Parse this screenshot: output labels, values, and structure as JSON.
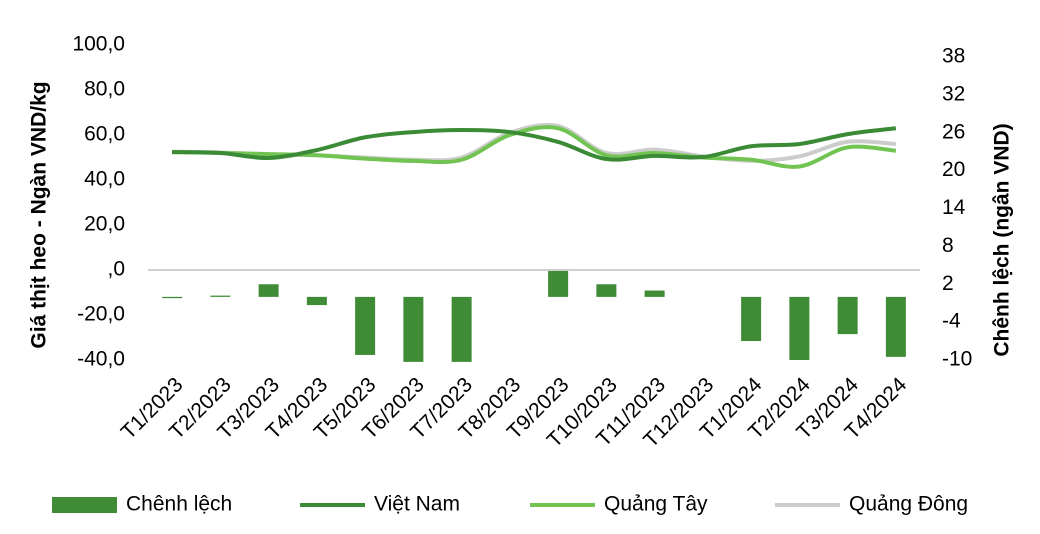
{
  "chart_data": {
    "type": "combo",
    "y_label": "Giá thịt heo - Ngàn VND/kg",
    "y2_label": "Chênh lệch (ngân VND)",
    "categories": [
      "T1/2023",
      "T2/2023",
      "T3/2023",
      "T4/2023",
      "T5/2023",
      "T6/2023",
      "T7/2023",
      "T8/2023",
      "T9/2023",
      "T10/2023",
      "T11/2023",
      "T12/2023",
      "T1/2024",
      "T2/2024",
      "T3/2024",
      "T4/2024"
    ],
    "ylim": [
      -40,
      100
    ],
    "yticks": [
      {
        "value": -40,
        "label": "-40,0"
      },
      {
        "value": -20,
        "label": "-20,0"
      },
      {
        "value": 0,
        "label": ",0"
      },
      {
        "value": 20,
        "label": "20,0"
      },
      {
        "value": 40,
        "label": "40,0"
      },
      {
        "value": 60,
        "label": "60,0"
      },
      {
        "value": 80,
        "label": "80,0"
      },
      {
        "value": 100,
        "label": "100,0"
      }
    ],
    "y2lim": [
      -10,
      38
    ],
    "y2ticks": [
      -10,
      -4,
      2,
      8,
      14,
      20,
      26,
      32,
      38
    ],
    "series": [
      {
        "name": "Chênh lệch",
        "type": "bar",
        "axis": "y2",
        "color": "#3f8b36",
        "values": [
          -0.2,
          0.2,
          2,
          -1.3,
          -9.2,
          -10.3,
          -10.3,
          0,
          4.1,
          2,
          1,
          0,
          -7,
          -10,
          -5.9,
          -9.5
        ]
      },
      {
        "name": "Việt Nam",
        "type": "line",
        "color": "#3b8a35",
        "values": [
          52.4,
          52,
          49.8,
          53.3,
          59,
          61.3,
          62.2,
          61.3,
          56.9,
          49.3,
          50.7,
          50.2,
          55,
          56,
          60.4,
          63
        ]
      },
      {
        "name": "Quảng Tây",
        "type": "line",
        "color": "#72c452",
        "values": [
          52.4,
          52,
          51.5,
          51,
          49.5,
          48.5,
          49,
          60,
          63,
          51,
          52,
          50,
          49,
          46,
          54.5,
          53
        ]
      },
      {
        "name": "Quảng Đông",
        "type": "line",
        "color": "#cccccc",
        "values": [
          52.6,
          52.2,
          51.5,
          51,
          50,
          49,
          50,
          61,
          64,
          52,
          53.5,
          50.5,
          48.5,
          50.5,
          57,
          56
        ]
      }
    ]
  }
}
